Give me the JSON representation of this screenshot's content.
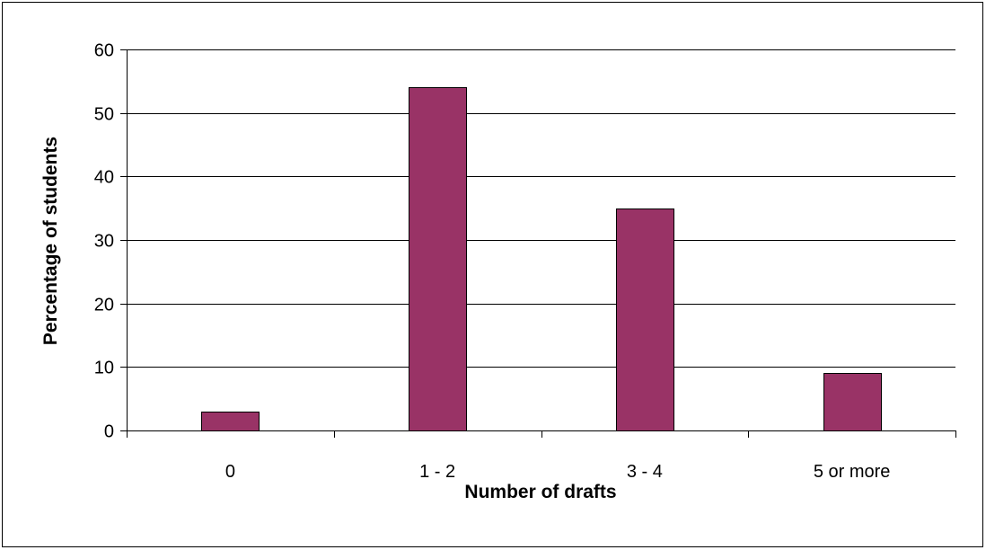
{
  "chart_data": {
    "type": "bar",
    "categories": [
      "0",
      "1 - 2",
      "3 - 4",
      "5 or more"
    ],
    "values": [
      3,
      54,
      35,
      9
    ],
    "title": "",
    "xlabel": "Number of drafts",
    "ylabel": "Percentage of students",
    "ylim": [
      0,
      60
    ],
    "yticks": [
      0,
      10,
      20,
      30,
      40,
      50,
      60
    ],
    "grid": true,
    "legend": "none",
    "colors": {
      "bar_fill": "#993366",
      "bar_stroke": "#000000",
      "gridline": "#000000",
      "axis": "#000000",
      "background": "#ffffff"
    }
  }
}
